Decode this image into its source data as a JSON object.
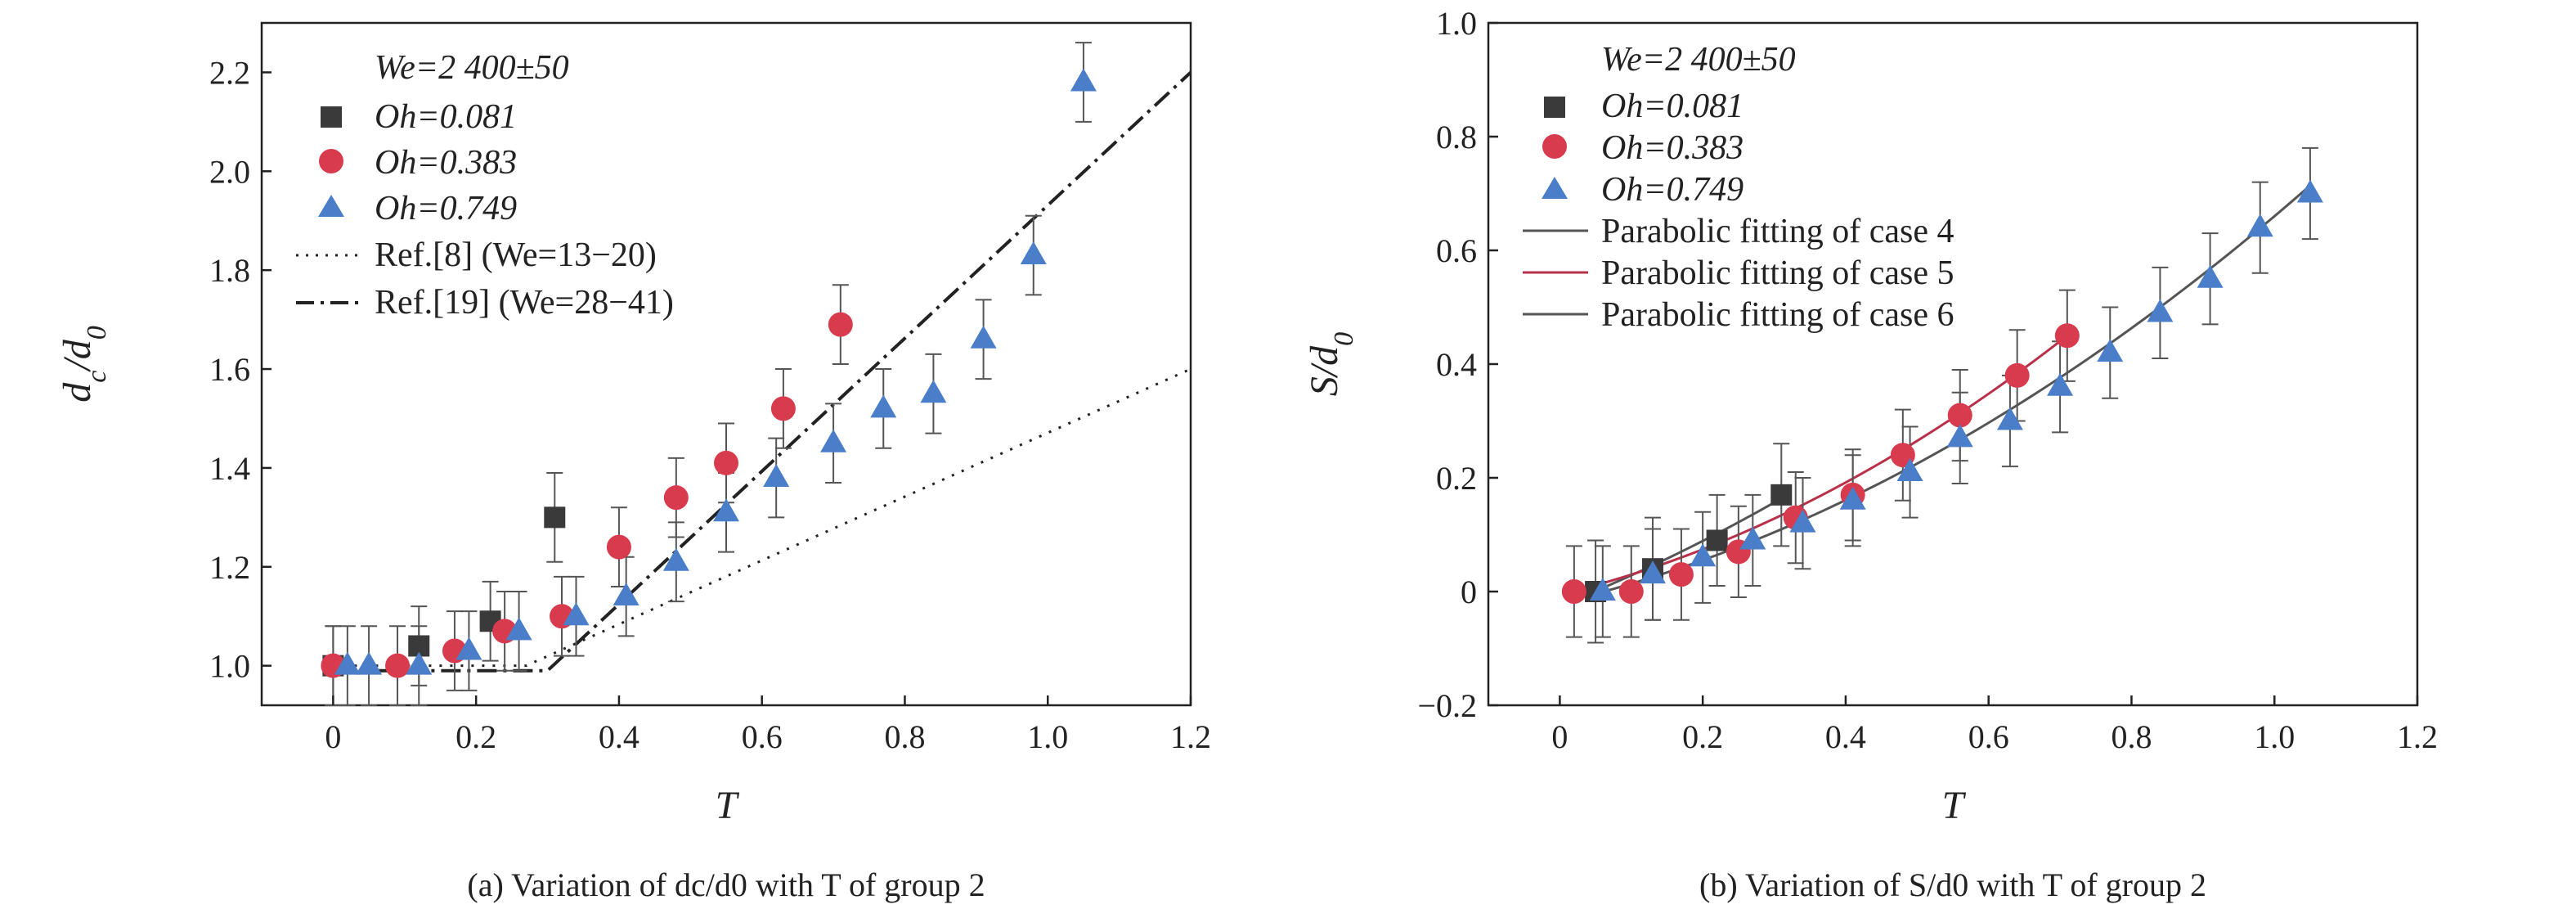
{
  "chart_data": [
    {
      "type": "scatter",
      "xlabel": "T",
      "ylabel": "dc/d0",
      "xlim": [
        -0.1,
        1.2
      ],
      "ylim": [
        0.92,
        2.3
      ],
      "xticks": [
        "0",
        "0.2",
        "0.4",
        "0.6",
        "0.8",
        "1.0",
        "1.2"
      ],
      "yticks": [
        "1.0",
        "1.2",
        "1.4",
        "1.6",
        "1.8",
        "2.0",
        "2.2"
      ],
      "caption": "(a) Variation of dc/d0 with T of group 2",
      "legend_title": "We=2 400±50",
      "legend_position": "top-left",
      "series": [
        {
          "name": "Oh=0.081",
          "marker": "square",
          "color": "#3a3a3a",
          "x": [
            0.0,
            0.12,
            0.22,
            0.31
          ],
          "y": [
            1.0,
            1.04,
            1.09,
            1.3
          ],
          "err": [
            0.08,
            0.08,
            0.08,
            0.09
          ]
        },
        {
          "name": "Oh=0.383",
          "marker": "circle",
          "color": "#d83a4e",
          "x": [
            0.0,
            0.09,
            0.17,
            0.24,
            0.32,
            0.4,
            0.48,
            0.55,
            0.63,
            0.71
          ],
          "y": [
            1.0,
            1.0,
            1.03,
            1.07,
            1.1,
            1.24,
            1.34,
            1.41,
            1.52,
            1.69
          ],
          "err": [
            0.08,
            0.08,
            0.08,
            0.08,
            0.08,
            0.08,
            0.08,
            0.08,
            0.08,
            0.08
          ]
        },
        {
          "name": "Oh=0.749",
          "marker": "triangle",
          "color": "#4a7ec9",
          "x": [
            0.02,
            0.05,
            0.12,
            0.19,
            0.26,
            0.34,
            0.41,
            0.48,
            0.55,
            0.62,
            0.7,
            0.77,
            0.84,
            0.91,
            0.98,
            1.05
          ],
          "y": [
            1.0,
            1.0,
            1.0,
            1.03,
            1.07,
            1.1,
            1.14,
            1.21,
            1.31,
            1.38,
            1.45,
            1.52,
            1.55,
            1.66,
            1.83,
            2.18
          ],
          "err": [
            0.08,
            0.08,
            0.08,
            0.08,
            0.08,
            0.08,
            0.08,
            0.08,
            0.08,
            0.08,
            0.08,
            0.08,
            0.08,
            0.08,
            0.08,
            0.08
          ]
        }
      ],
      "reference_lines": [
        {
          "name": "Ref.[8] (We=13−20)",
          "style": "dotted",
          "x": [
            0.0,
            0.27,
            1.2
          ],
          "y": [
            1.0,
            1.0,
            1.6
          ]
        },
        {
          "name": "Ref.[19] (We=28−41)",
          "style": "dashdot",
          "x": [
            0.0,
            0.3,
            1.2
          ],
          "y": [
            0.99,
            0.99,
            2.2
          ]
        }
      ]
    },
    {
      "type": "scatter",
      "xlabel": "T",
      "ylabel": "S/d0",
      "xlim": [
        -0.1,
        1.2
      ],
      "ylim": [
        -0.2,
        1.0
      ],
      "xticks": [
        "0",
        "0.2",
        "0.4",
        "0.6",
        "0.8",
        "1.0",
        "1.2"
      ],
      "yticks": [
        "−0.2",
        "0",
        "0.2",
        "0.4",
        "0.6",
        "0.8",
        "1.0"
      ],
      "caption": "(b) Variation of S/d0 with T of group 2",
      "legend_title": "We=2 400±50",
      "legend_position": "top-left",
      "series": [
        {
          "name": "Oh=0.081",
          "marker": "square",
          "color": "#3a3a3a",
          "x": [
            0.05,
            0.13,
            0.22,
            0.31
          ],
          "y": [
            0.0,
            0.04,
            0.09,
            0.17
          ],
          "err": [
            0.09,
            0.09,
            0.08,
            0.09
          ]
        },
        {
          "name": "Oh=0.383",
          "marker": "circle",
          "color": "#d83a4e",
          "x": [
            0.02,
            0.1,
            0.17,
            0.25,
            0.33,
            0.41,
            0.48,
            0.56,
            0.64,
            0.71
          ],
          "y": [
            0.0,
            0.0,
            0.03,
            0.07,
            0.13,
            0.17,
            0.24,
            0.31,
            0.38,
            0.45
          ],
          "err": [
            0.08,
            0.08,
            0.08,
            0.08,
            0.08,
            0.08,
            0.08,
            0.08,
            0.08,
            0.08
          ]
        },
        {
          "name": "Oh=0.749",
          "marker": "triangle",
          "color": "#4a7ec9",
          "x": [
            0.06,
            0.13,
            0.2,
            0.27,
            0.34,
            0.41,
            0.49,
            0.56,
            0.63,
            0.7,
            0.77,
            0.84,
            0.91,
            0.98,
            1.05
          ],
          "y": [
            0.0,
            0.03,
            0.06,
            0.09,
            0.12,
            0.16,
            0.21,
            0.27,
            0.3,
            0.36,
            0.42,
            0.49,
            0.55,
            0.64,
            0.7
          ],
          "err": [
            0.08,
            0.08,
            0.08,
            0.08,
            0.08,
            0.08,
            0.08,
            0.08,
            0.08,
            0.08,
            0.08,
            0.08,
            0.08,
            0.08,
            0.08
          ]
        }
      ],
      "fits": [
        {
          "name": "Parabolic fitting of case 4",
          "color": "#555555",
          "x": [
            0.05,
            0.31
          ],
          "coef": [
            0.35,
            0.5,
            -0.025
          ]
        },
        {
          "name": "Parabolic fitting of case 5",
          "color": "#b8304a",
          "x": [
            0.02,
            0.71
          ],
          "coef": [
            0.48,
            0.3,
            -0.005
          ]
        },
        {
          "name": "Parabolic fitting of case 6",
          "color": "#555555",
          "x": [
            0.06,
            1.05
          ],
          "coef": [
            0.38,
            0.3,
            -0.02
          ]
        }
      ]
    }
  ]
}
